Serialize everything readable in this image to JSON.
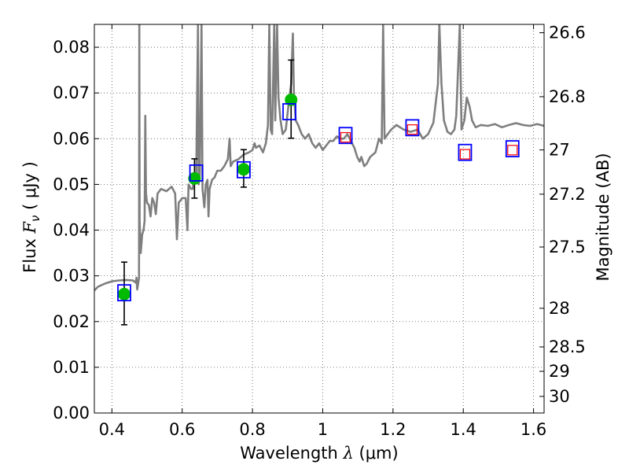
{
  "chart_data": {
    "type": "scatter",
    "xlabel": "Wavelength  λ (μm)",
    "ylabel": "Flux  F_ν  ( μJy )",
    "ylabel_parts": {
      "prefix": "Flux",
      "symbol": "F",
      "subscript": "ν",
      "unit": "( μJy )"
    },
    "xlabel_parts": {
      "prefix": "Wavelength",
      "symbol": "λ",
      "unit": "(μm)"
    },
    "y2label": "Magnitude (AB)",
    "xlim": [
      0.35,
      1.63
    ],
    "ylim": [
      0.0,
      0.085
    ],
    "grid": true,
    "x_ticks": [
      0.4,
      0.6,
      0.8,
      1.0,
      1.2,
      1.4,
      1.6
    ],
    "x_tick_labels": [
      "0.4",
      "0.6",
      "0.8",
      "1",
      "1.2",
      "1.4",
      "1.6"
    ],
    "y_ticks": [
      0.0,
      0.01,
      0.02,
      0.03,
      0.04,
      0.05,
      0.06,
      0.07,
      0.08
    ],
    "y_tick_labels": [
      "0.00",
      "0.01",
      "0.02",
      "0.03",
      "0.04",
      "0.05",
      "0.06",
      "0.07",
      "0.08"
    ],
    "y2_ticks": [
      26.6,
      26.8,
      27,
      27.2,
      27.5,
      28,
      28.5,
      29,
      30
    ],
    "y2_tick_labels": [
      "26.6",
      "26.8",
      "27",
      "27.2",
      "27.5",
      "28",
      "28.5",
      "29",
      "30"
    ],
    "colors": {
      "model": "#7f7f7f",
      "observed": "#00bb00",
      "model_phot": "#0000ff",
      "predicted": "#ff0000",
      "errorbar": "#000000"
    },
    "series": [
      {
        "kind": "model_spectrum",
        "points": [
          [
            0.35,
            0.0268
          ],
          [
            0.36,
            0.0276
          ],
          [
            0.38,
            0.0283
          ],
          [
            0.4,
            0.0288
          ],
          [
            0.42,
            0.029
          ],
          [
            0.44,
            0.0291
          ],
          [
            0.46,
            0.029
          ],
          [
            0.468,
            0.0285
          ],
          [
            0.47,
            0.0296
          ],
          [
            0.472,
            0.027
          ],
          [
            0.477,
            0.0295
          ],
          [
            0.478,
            0.085
          ],
          [
            0.479,
            0.042
          ],
          [
            0.482,
            0.035
          ],
          [
            0.486,
            0.039
          ],
          [
            0.49,
            0.04
          ],
          [
            0.493,
            0.042
          ],
          [
            0.495,
            0.065
          ],
          [
            0.497,
            0.048
          ],
          [
            0.5,
            0.046
          ],
          [
            0.505,
            0.0455
          ],
          [
            0.51,
            0.043
          ],
          [
            0.515,
            0.047
          ],
          [
            0.52,
            0.046
          ],
          [
            0.525,
            0.0435
          ],
          [
            0.53,
            0.048
          ],
          [
            0.54,
            0.049
          ],
          [
            0.555,
            0.0485
          ],
          [
            0.57,
            0.0495
          ],
          [
            0.58,
            0.048
          ],
          [
            0.585,
            0.038
          ],
          [
            0.59,
            0.046
          ],
          [
            0.6,
            0.047
          ],
          [
            0.61,
            0.047
          ],
          [
            0.615,
            0.04
          ],
          [
            0.618,
            0.05
          ],
          [
            0.625,
            0.049
          ],
          [
            0.63,
            0.049
          ],
          [
            0.635,
            0.052
          ],
          [
            0.64,
            0.052
          ],
          [
            0.645,
            0.085
          ],
          [
            0.647,
            0.05
          ],
          [
            0.65,
            0.052
          ],
          [
            0.655,
            0.085
          ],
          [
            0.658,
            0.049
          ],
          [
            0.663,
            0.045
          ],
          [
            0.667,
            0.05
          ],
          [
            0.672,
            0.051
          ],
          [
            0.675,
            0.043
          ],
          [
            0.678,
            0.049
          ],
          [
            0.685,
            0.051
          ],
          [
            0.692,
            0.0515
          ],
          [
            0.7,
            0.053
          ],
          [
            0.71,
            0.053
          ],
          [
            0.72,
            0.054
          ],
          [
            0.73,
            0.0555
          ],
          [
            0.735,
            0.06
          ],
          [
            0.738,
            0.054
          ],
          [
            0.745,
            0.055
          ],
          [
            0.76,
            0.0555
          ],
          [
            0.775,
            0.0565
          ],
          [
            0.79,
            0.057
          ],
          [
            0.8,
            0.0575
          ],
          [
            0.806,
            0.059
          ],
          [
            0.81,
            0.058
          ],
          [
            0.82,
            0.0585
          ],
          [
            0.83,
            0.057
          ],
          [
            0.838,
            0.059
          ],
          [
            0.844,
            0.063
          ],
          [
            0.848,
            0.085
          ],
          [
            0.852,
            0.062
          ],
          [
            0.856,
            0.061
          ],
          [
            0.862,
            0.085
          ],
          [
            0.865,
            0.064
          ],
          [
            0.87,
            0.085
          ],
          [
            0.874,
            0.069
          ],
          [
            0.88,
            0.064
          ],
          [
            0.886,
            0.061
          ],
          [
            0.895,
            0.062
          ],
          [
            0.905,
            0.069
          ],
          [
            0.91,
            0.072
          ],
          [
            0.915,
            0.083
          ],
          [
            0.918,
            0.07
          ],
          [
            0.923,
            0.064
          ],
          [
            0.93,
            0.063
          ],
          [
            0.94,
            0.061
          ],
          [
            0.95,
            0.06
          ],
          [
            0.96,
            0.061
          ],
          [
            0.97,
            0.059
          ],
          [
            0.98,
            0.058
          ],
          [
            0.99,
            0.059
          ],
          [
            1.0,
            0.0575
          ],
          [
            1.01,
            0.0585
          ],
          [
            1.02,
            0.0595
          ],
          [
            1.03,
            0.0595
          ],
          [
            1.04,
            0.0605
          ],
          [
            1.05,
            0.06
          ],
          [
            1.06,
            0.06
          ],
          [
            1.07,
            0.061
          ],
          [
            1.08,
            0.0595
          ],
          [
            1.09,
            0.058
          ],
          [
            1.098,
            0.056
          ],
          [
            1.105,
            0.055
          ],
          [
            1.11,
            0.056
          ],
          [
            1.118,
            0.054
          ],
          [
            1.125,
            0.0545
          ],
          [
            1.135,
            0.056
          ],
          [
            1.15,
            0.057
          ],
          [
            1.16,
            0.06
          ],
          [
            1.168,
            0.059
          ],
          [
            1.172,
            0.085
          ],
          [
            1.176,
            0.06
          ],
          [
            1.185,
            0.061
          ],
          [
            1.195,
            0.062
          ],
          [
            1.21,
            0.063
          ],
          [
            1.23,
            0.062
          ],
          [
            1.25,
            0.0615
          ],
          [
            1.27,
            0.062
          ],
          [
            1.285,
            0.06
          ],
          [
            1.3,
            0.061
          ],
          [
            1.315,
            0.0635
          ],
          [
            1.328,
            0.072
          ],
          [
            1.332,
            0.085
          ],
          [
            1.338,
            0.072
          ],
          [
            1.345,
            0.064
          ],
          [
            1.355,
            0.0615
          ],
          [
            1.365,
            0.061
          ],
          [
            1.375,
            0.062
          ],
          [
            1.38,
            0.065
          ],
          [
            1.39,
            0.085
          ],
          [
            1.395,
            0.062
          ],
          [
            1.403,
            0.064
          ],
          [
            1.41,
            0.069
          ],
          [
            1.418,
            0.067
          ],
          [
            1.425,
            0.064
          ],
          [
            1.435,
            0.0625
          ],
          [
            1.45,
            0.063
          ],
          [
            1.47,
            0.0628
          ],
          [
            1.49,
            0.0632
          ],
          [
            1.51,
            0.0625
          ],
          [
            1.53,
            0.063
          ],
          [
            1.55,
            0.0634
          ],
          [
            1.57,
            0.063
          ],
          [
            1.59,
            0.0628
          ],
          [
            1.61,
            0.0632
          ],
          [
            1.63,
            0.0628
          ]
        ]
      },
      {
        "kind": "observed_photometry",
        "points": [
          {
            "x": 0.435,
            "y": 0.026,
            "yerr": [
              0.0193,
              0.033
            ]
          },
          {
            "x": 0.635,
            "y": 0.0513,
            "yerr": [
              0.047,
              0.0556
            ]
          },
          {
            "x": 0.775,
            "y": 0.0533,
            "yerr": [
              0.0494,
              0.0576
            ]
          },
          {
            "x": 0.91,
            "y": 0.0685,
            "yerr": [
              0.0601,
              0.0772
            ]
          }
        ]
      },
      {
        "kind": "model_photometry",
        "points": [
          {
            "x": 0.435,
            "y": 0.0263
          },
          {
            "x": 0.64,
            "y": 0.0525
          },
          {
            "x": 0.775,
            "y": 0.0532
          },
          {
            "x": 0.905,
            "y": 0.0659
          },
          {
            "x": 1.065,
            "y": 0.0607
          },
          {
            "x": 1.255,
            "y": 0.0624
          },
          {
            "x": 1.405,
            "y": 0.057
          },
          {
            "x": 1.54,
            "y": 0.0578
          }
        ]
      },
      {
        "kind": "predicted_photometry",
        "points": [
          {
            "x": 1.065,
            "y": 0.0603
          },
          {
            "x": 1.255,
            "y": 0.062
          },
          {
            "x": 1.405,
            "y": 0.0566
          },
          {
            "x": 1.54,
            "y": 0.0575
          }
        ]
      }
    ]
  }
}
